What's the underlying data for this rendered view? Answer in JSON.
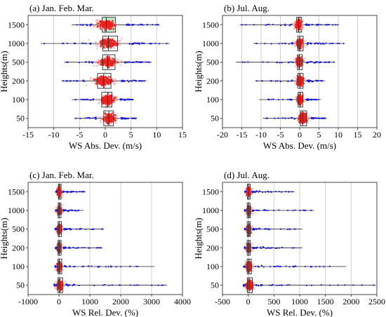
{
  "chart_data": [
    {
      "type": "scatter",
      "title": "(a) Jan. Feb. Mar.",
      "xlabel": "WS Abs. Dev. (m/s)",
      "ylabel": "Heights(m)",
      "categories": [
        "1500",
        "1000",
        "500",
        "200",
        "100",
        "50"
      ],
      "xlim": [
        -15,
        15
      ],
      "xticks": [
        -15,
        -10,
        -5,
        0,
        5,
        10,
        15
      ],
      "grid": "vertical",
      "series": [
        {
          "category": "1500",
          "min": -6.5,
          "q1": -0.6,
          "median": 0.2,
          "q3": 2.0,
          "max": 10.5,
          "highlight": true
        },
        {
          "category": "1000",
          "min": -12.5,
          "q1": -0.5,
          "median": 0.6,
          "q3": 2.4,
          "max": 12.5,
          "highlight": false
        },
        {
          "category": "500",
          "min": -8.0,
          "q1": -0.5,
          "median": 0.5,
          "q3": 1.9,
          "max": 9.0,
          "highlight": false
        },
        {
          "category": "200",
          "min": -8.5,
          "q1": -1.5,
          "median": -0.3,
          "q3": 1.1,
          "max": 8.0,
          "highlight": false
        },
        {
          "category": "100",
          "min": -6.5,
          "q1": -0.7,
          "median": 0.5,
          "q3": 1.3,
          "max": 5.5,
          "highlight": false
        },
        {
          "category": "50",
          "min": -6.0,
          "q1": -0.3,
          "median": 0.7,
          "q3": 1.6,
          "max": 6.0,
          "highlight": false
        }
      ]
    },
    {
      "type": "scatter",
      "title": "(b) Jul. Aug.",
      "xlabel": "WS Abs. Dev. (m/s)",
      "ylabel": "Heights(m)",
      "categories": [
        "1500",
        "1000",
        "500",
        "200",
        "100",
        "50"
      ],
      "xlim": [
        -20,
        20
      ],
      "xticks": [
        -20,
        -15,
        -10,
        -5,
        0,
        5,
        10,
        15,
        20
      ],
      "grid": "vertical",
      "series": [
        {
          "category": "1500",
          "min": -15.5,
          "q1": -0.8,
          "median": -0.3,
          "q3": 0.5,
          "max": 10.0,
          "highlight": true
        },
        {
          "category": "1000",
          "min": -12.0,
          "q1": -0.5,
          "median": 0.0,
          "q3": 0.9,
          "max": 11.5,
          "highlight": false
        },
        {
          "category": "500",
          "min": -16.5,
          "q1": -0.6,
          "median": -0.1,
          "q3": 0.7,
          "max": 9.0,
          "highlight": false
        },
        {
          "category": "200",
          "min": -11.5,
          "q1": -0.5,
          "median": 0.1,
          "q3": 0.9,
          "max": 6.5,
          "highlight": false
        },
        {
          "category": "100",
          "min": -10.5,
          "q1": -0.4,
          "median": 0.1,
          "q3": 0.8,
          "max": 5.5,
          "highlight": false
        },
        {
          "category": "50",
          "min": -9.5,
          "q1": 0.2,
          "median": 0.8,
          "q3": 1.8,
          "max": 7.0,
          "highlight": false
        }
      ]
    },
    {
      "type": "scatter",
      "title": "(c) Jan. Feb. Mar.",
      "xlabel": "WS Rel. Dev. (%)",
      "ylabel": "Heights(m)",
      "categories": [
        "1500",
        "1000",
        "500",
        "200",
        "100",
        "50"
      ],
      "xlim": [
        -1000,
        4000
      ],
      "xticks": [
        -1000,
        0,
        1000,
        2000,
        3000,
        4000
      ],
      "grid": "vertical",
      "series": [
        {
          "category": "1500",
          "min": -50,
          "q1": -20,
          "median": 5,
          "q3": 40,
          "max": 850,
          "highlight": true
        },
        {
          "category": "1000",
          "min": -60,
          "q1": -25,
          "median": 10,
          "q3": 60,
          "max": 800,
          "highlight": false
        },
        {
          "category": "500",
          "min": -70,
          "q1": -30,
          "median": 15,
          "q3": 80,
          "max": 1450,
          "highlight": false
        },
        {
          "category": "200",
          "min": -70,
          "q1": -30,
          "median": 10,
          "q3": 70,
          "max": 1400,
          "highlight": false
        },
        {
          "category": "100",
          "min": -80,
          "q1": -30,
          "median": 15,
          "q3": 90,
          "max": 3100,
          "highlight": false
        },
        {
          "category": "50",
          "min": -80,
          "q1": -30,
          "median": 25,
          "q3": 120,
          "max": 3500,
          "highlight": false
        }
      ]
    },
    {
      "type": "scatter",
      "title": "(d) Jul. Aug.",
      "xlabel": "WS Rel. Dev. (%)",
      "ylabel": "Heights(m)",
      "categories": [
        "1500",
        "1000",
        "500",
        "200",
        "100",
        "50"
      ],
      "xlim": [
        -500,
        2500
      ],
      "xticks": [
        -500,
        0,
        500,
        1000,
        1500,
        2000,
        2500
      ],
      "grid": "vertical",
      "series": [
        {
          "category": "1500",
          "min": -40,
          "q1": -15,
          "median": 5,
          "q3": 25,
          "max": 900,
          "highlight": true
        },
        {
          "category": "1000",
          "min": -50,
          "q1": -20,
          "median": 10,
          "q3": 40,
          "max": 1280,
          "highlight": false
        },
        {
          "category": "500",
          "min": -50,
          "q1": -20,
          "median": 10,
          "q3": 40,
          "max": 1050,
          "highlight": false
        },
        {
          "category": "200",
          "min": -50,
          "q1": -20,
          "median": 10,
          "q3": 40,
          "max": 1050,
          "highlight": false
        },
        {
          "category": "100",
          "min": -60,
          "q1": -20,
          "median": 15,
          "q3": 60,
          "max": 1900,
          "highlight": false
        },
        {
          "category": "50",
          "min": -60,
          "q1": -15,
          "median": 20,
          "q3": 80,
          "max": 2480,
          "highlight": false
        }
      ]
    }
  ],
  "colors": {
    "dense": "#e8231e",
    "halo": "#f59aa0",
    "tail": "#1a1ad8",
    "highlight_box": "#a8e6c4",
    "box_stroke": "#2a2a2a",
    "grid": "#cfcfcf"
  }
}
